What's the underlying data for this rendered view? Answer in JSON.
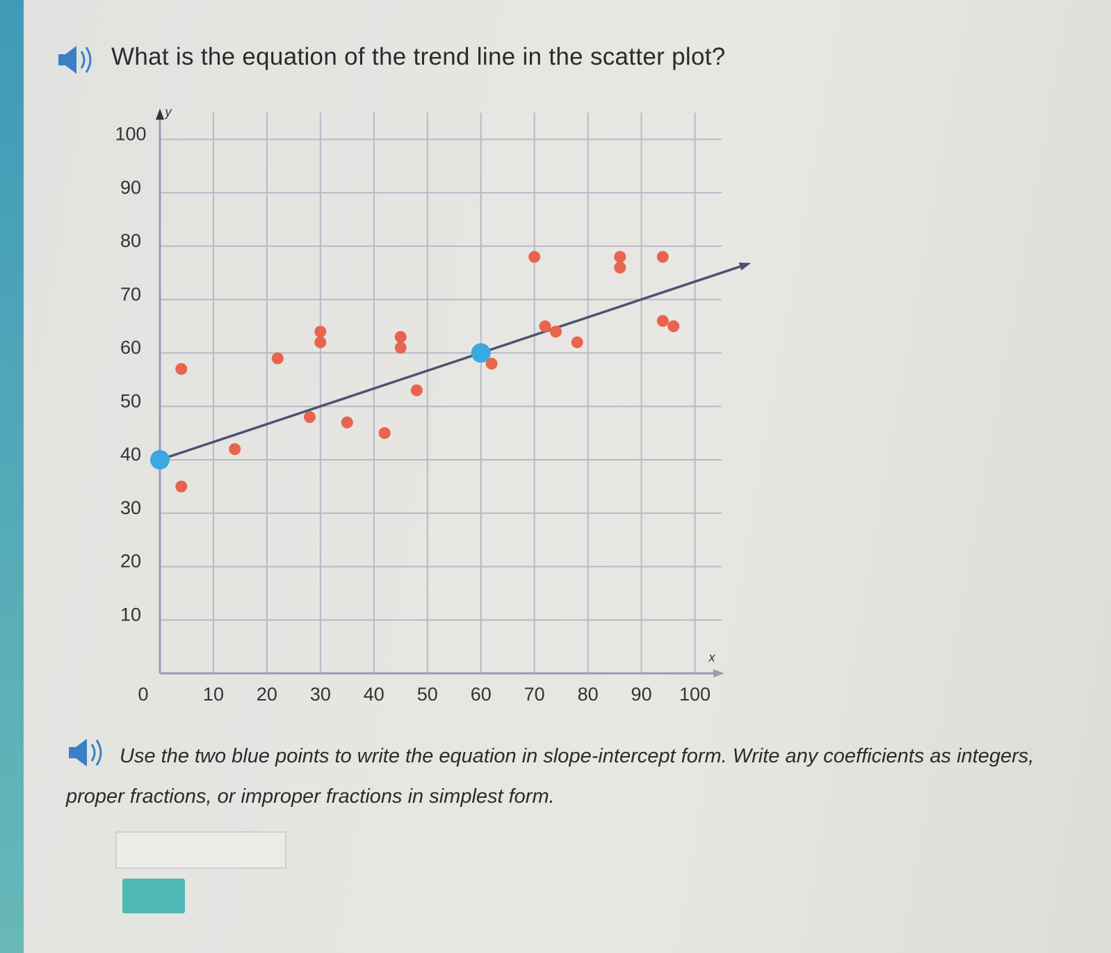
{
  "question": "What is the equation of the trend line in the scatter plot?",
  "chart_data": {
    "type": "scatter",
    "x_label": "x",
    "y_label": "y",
    "xlim": [
      0,
      105
    ],
    "ylim": [
      0,
      105
    ],
    "xticks": [
      0,
      10,
      20,
      30,
      40,
      50,
      60,
      70,
      80,
      90,
      100
    ],
    "yticks": [
      10,
      20,
      30,
      40,
      50,
      60,
      70,
      80,
      90,
      100
    ],
    "grid": true,
    "series": [
      {
        "color": "#e8644e",
        "x": [
          4,
          4,
          14,
          22,
          28,
          30,
          30,
          35,
          42,
          45,
          45,
          48,
          62,
          70,
          72,
          74,
          78,
          86,
          86,
          94,
          94,
          96
        ],
        "values": [
          57,
          35,
          42,
          59,
          48,
          64,
          62,
          47,
          45,
          61,
          63,
          53,
          58,
          78,
          65,
          64,
          62,
          78,
          76,
          78,
          66,
          65
        ]
      },
      {
        "color": "#3aa8e2",
        "x": [
          0,
          60
        ],
        "values": [
          40,
          60
        ]
      }
    ],
    "trend_line": {
      "color": "#4b5372",
      "x": [
        0,
        110
      ],
      "values": [
        40,
        76.7
      ]
    }
  },
  "instruction": "Use the two blue points to write the equation in slope-intercept form. Write any coefficients as integers, proper fractions, or improper fractions in simplest form."
}
